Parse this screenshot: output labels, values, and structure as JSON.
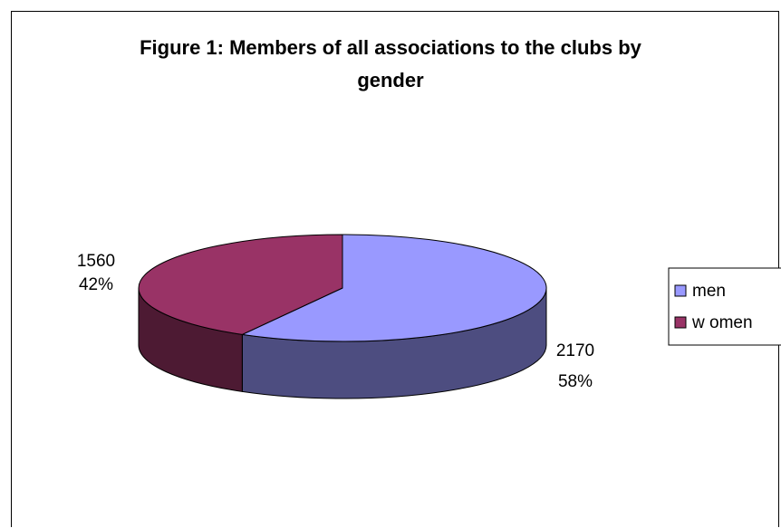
{
  "chart_data": {
    "type": "pie",
    "title_lines": [
      "Figure 1: Members of all associations to the clubs by",
      "gender"
    ],
    "categories": [
      "men",
      "women"
    ],
    "values": [
      2170,
      1560
    ],
    "percent_labels": [
      "58%",
      "42%"
    ],
    "value_labels": [
      "2170",
      "1560"
    ],
    "legend_labels": [
      "men",
      "w omen"
    ],
    "legend_placement": "right",
    "colors": {
      "men": "#9999FF",
      "women": "#993366",
      "men_side": "#4D4D80",
      "women_side": "#4D1A33"
    },
    "three_d": true
  }
}
